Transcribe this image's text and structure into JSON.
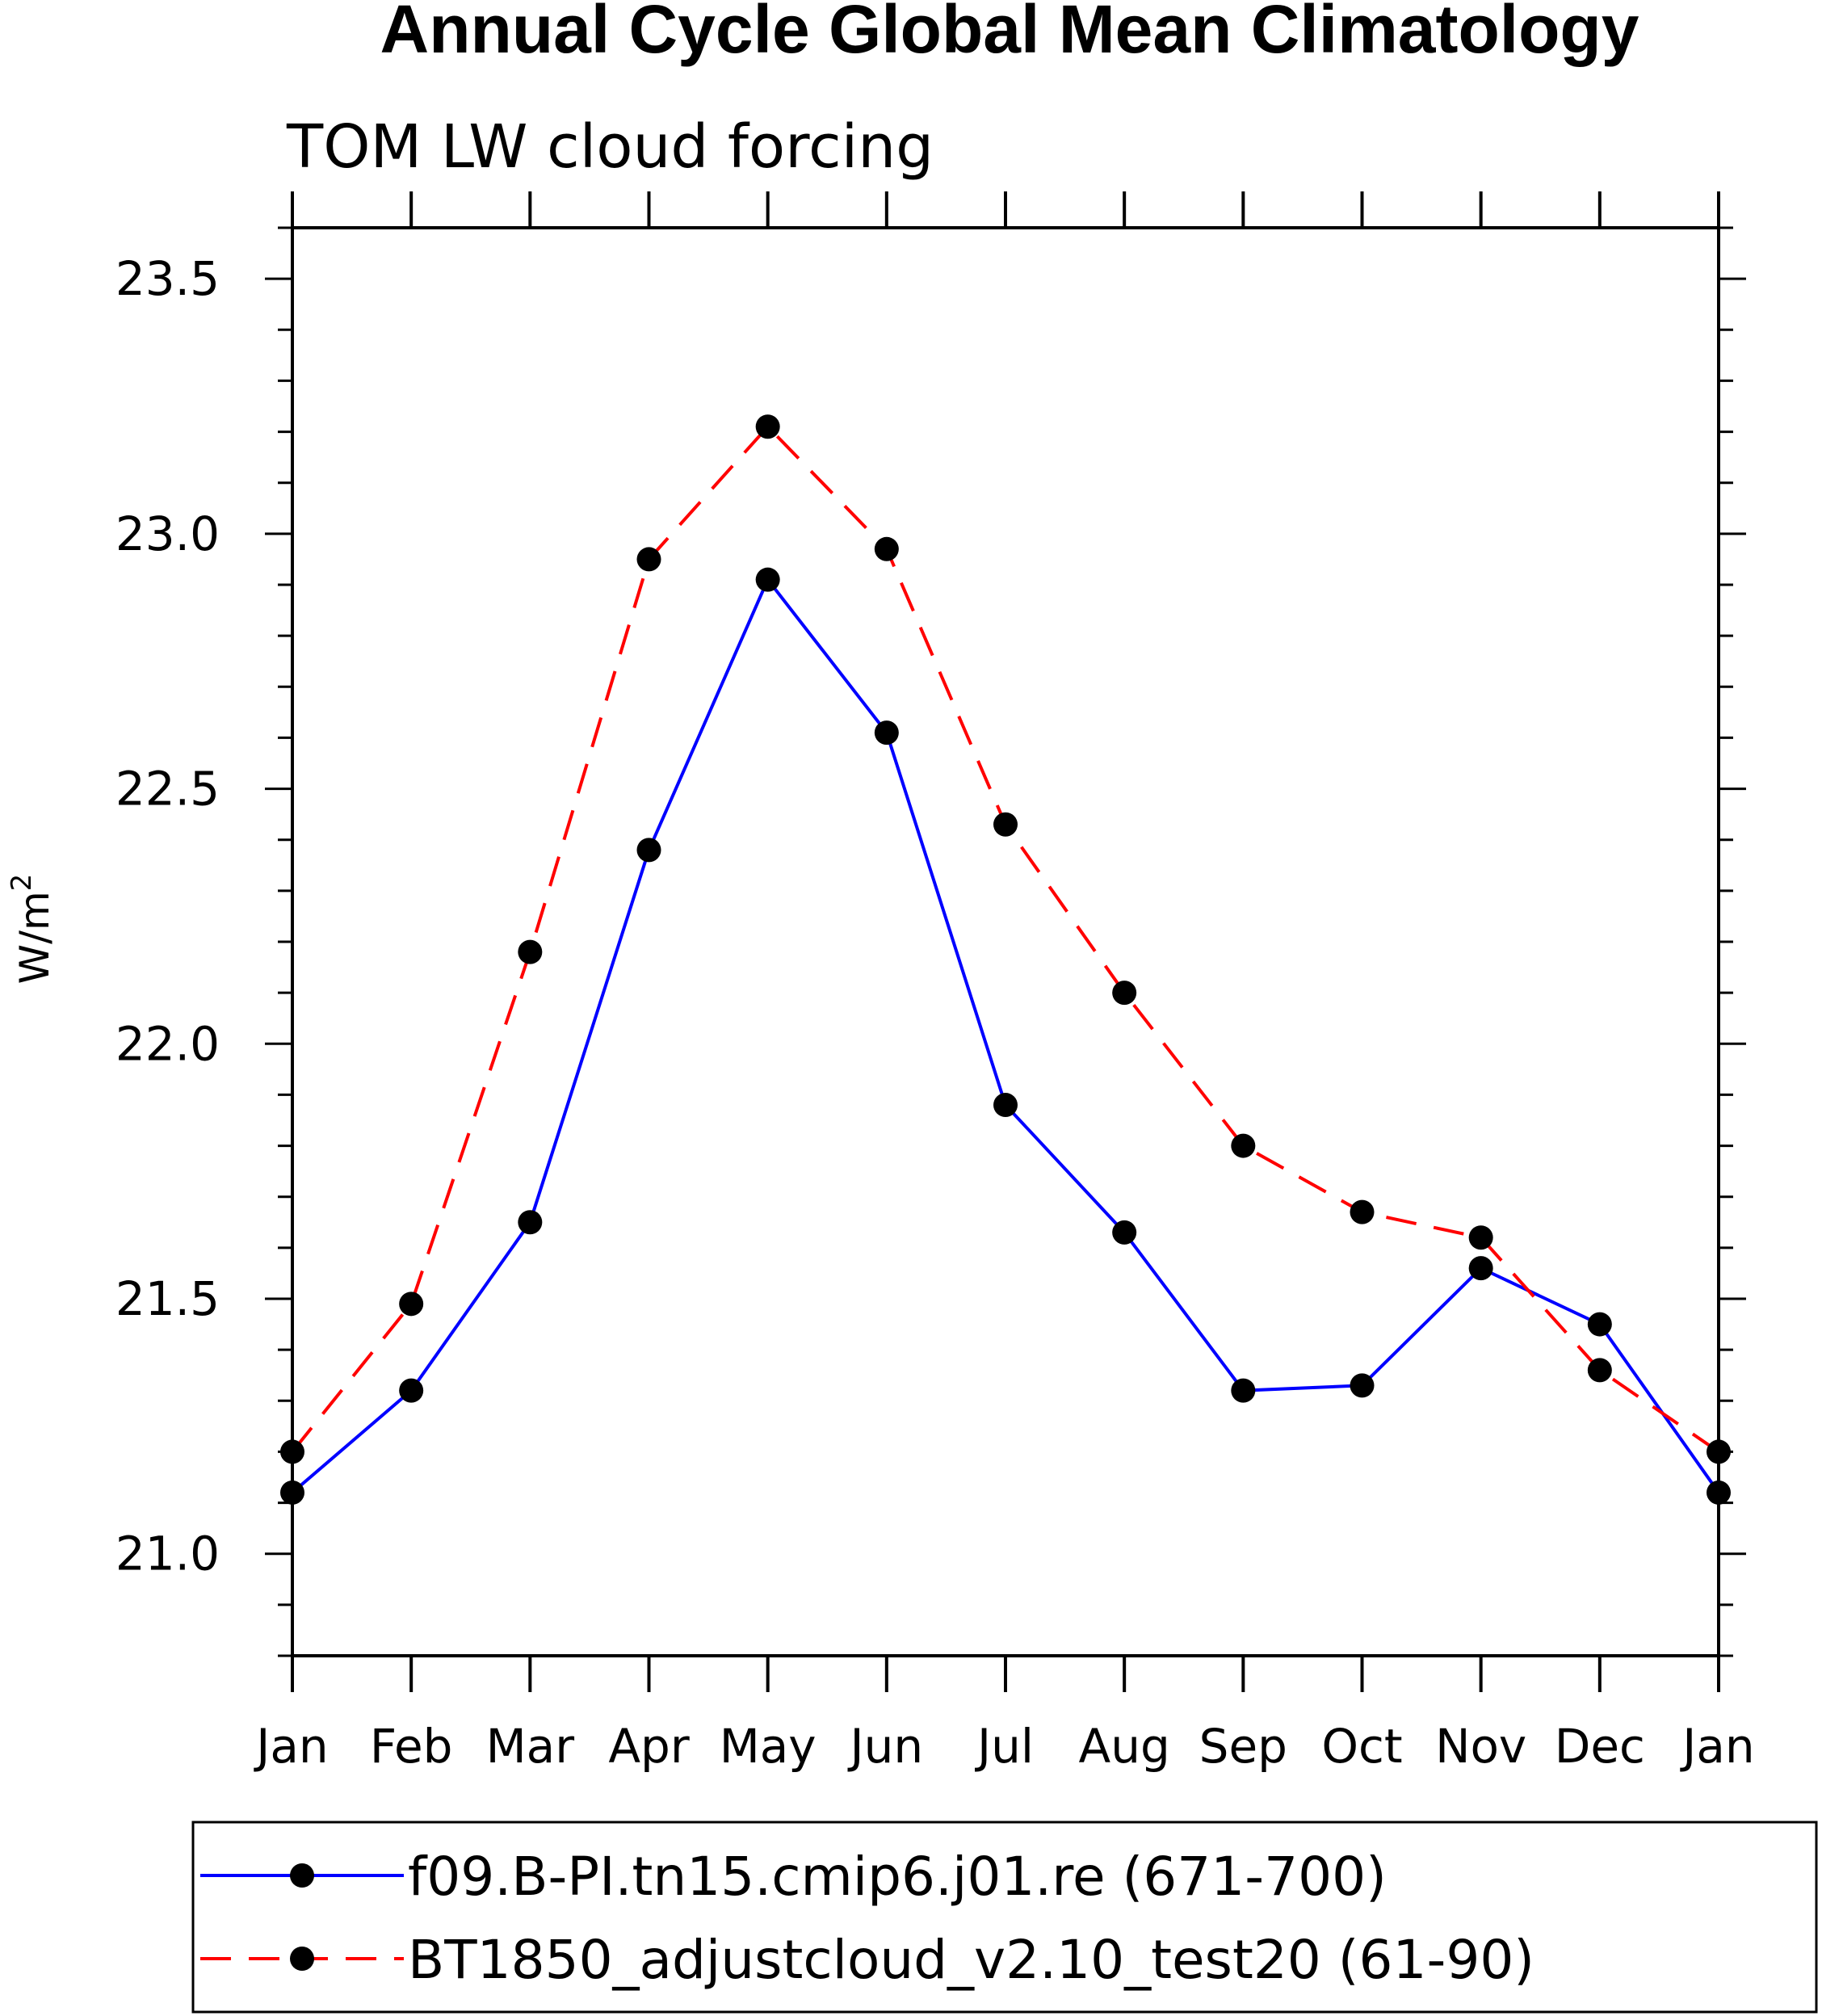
{
  "chart_data": {
    "type": "line",
    "title": "Annual Cycle Global Mean Climatology",
    "subtitle": "TOM LW cloud forcing",
    "ylabel": "W/m",
    "ylabel_superscript": "2",
    "xlabel": "",
    "categories": [
      "Jan",
      "Feb",
      "Mar",
      "Apr",
      "May",
      "Jun",
      "Jul",
      "Aug",
      "Sep",
      "Oct",
      "Nov",
      "Dec",
      "Jan"
    ],
    "ylim": [
      20.8,
      23.6
    ],
    "yticks": [
      "21.0",
      "21.5",
      "22.0",
      "22.5",
      "23.0",
      "23.5"
    ],
    "grid": false,
    "legend_position": "bottom",
    "series": [
      {
        "name": "f09.B-PI.tn15.cmip6.j01.re (671-700)",
        "color": "#0000ff",
        "dash": "solid",
        "values": [
          21.12,
          21.32,
          21.65,
          22.38,
          22.91,
          22.61,
          21.88,
          21.63,
          21.32,
          21.33,
          21.56,
          21.45,
          21.12
        ]
      },
      {
        "name": "BT1850_adjustcloud_v2.10_test20 (61-90)",
        "color": "#ff0000",
        "dash": "dashed",
        "values": [
          21.2,
          21.49,
          22.18,
          22.95,
          23.21,
          22.97,
          22.43,
          22.1,
          21.8,
          21.67,
          21.62,
          21.36,
          21.2
        ]
      }
    ]
  }
}
